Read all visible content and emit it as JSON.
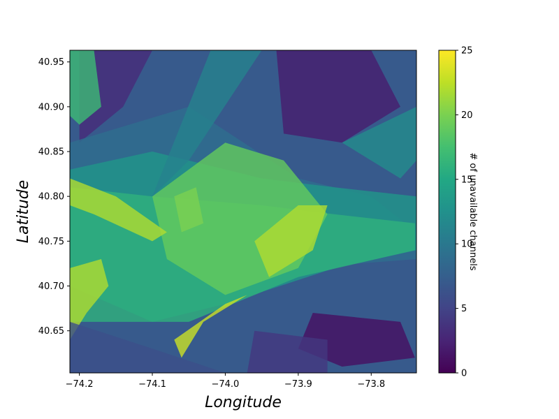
{
  "chart_data": {
    "type": "heatmap",
    "title": "",
    "xlabel": "Longitude",
    "ylabel": "Latitude",
    "xlim": [
      -74.213,
      -73.738
    ],
    "ylim": [
      40.603,
      40.963
    ],
    "x_ticks": [
      -74.2,
      -74.1,
      -74.0,
      -73.9,
      -73.8
    ],
    "x_tick_labels": [
      "−74.2",
      "−74.1",
      "−74.0",
      "−73.9",
      "−73.8"
    ],
    "y_ticks": [
      40.65,
      40.7,
      40.75,
      40.8,
      40.85,
      40.9,
      40.95
    ],
    "y_tick_labels": [
      "40.65",
      "40.70",
      "40.75",
      "40.80",
      "40.85",
      "40.90",
      "40.95"
    ],
    "colorbar": {
      "label": "# of unavailable channels",
      "colormap": "viridis",
      "min": 0,
      "max": 25,
      "ticks": [
        0,
        5,
        10,
        15,
        20,
        25
      ],
      "tick_labels": [
        "0",
        "5",
        "10",
        "15",
        "20",
        "25"
      ]
    },
    "background_value": 7,
    "overlays": [
      {
        "value": 2,
        "points": [
          [
            -73.93,
            40.963
          ],
          [
            -73.8,
            40.963
          ],
          [
            -73.76,
            40.9
          ],
          [
            -73.84,
            40.86
          ],
          [
            -73.92,
            40.87
          ]
        ]
      },
      {
        "value": 3,
        "points": [
          [
            -74.2,
            40.963
          ],
          [
            -74.1,
            40.963
          ],
          [
            -74.14,
            40.9
          ],
          [
            -74.2,
            40.86
          ]
        ]
      },
      {
        "value": 1,
        "points": [
          [
            -73.88,
            40.67
          ],
          [
            -73.76,
            40.66
          ],
          [
            -73.74,
            40.62
          ],
          [
            -73.84,
            40.61
          ],
          [
            -73.9,
            40.63
          ]
        ]
      },
      {
        "value": 4,
        "points": [
          [
            -73.96,
            40.65
          ],
          [
            -73.86,
            40.64
          ],
          [
            -73.86,
            40.603
          ],
          [
            -73.97,
            40.603
          ]
        ]
      },
      {
        "value": 9,
        "points": [
          [
            -74.213,
            40.86
          ],
          [
            -74.05,
            40.9
          ],
          [
            -73.9,
            40.82
          ],
          [
            -73.8,
            40.8
          ],
          [
            -73.738,
            40.76
          ],
          [
            -73.738,
            40.73
          ],
          [
            -73.9,
            40.72
          ],
          [
            -74.05,
            40.68
          ],
          [
            -74.213,
            40.74
          ]
        ]
      },
      {
        "value": 13,
        "points": [
          [
            -74.213,
            40.83
          ],
          [
            -74.1,
            40.85
          ],
          [
            -73.95,
            40.82
          ],
          [
            -73.85,
            40.81
          ],
          [
            -73.738,
            40.8
          ],
          [
            -73.738,
            40.74
          ],
          [
            -73.85,
            40.72
          ],
          [
            -74.0,
            40.68
          ],
          [
            -74.1,
            40.66
          ],
          [
            -74.213,
            40.7
          ]
        ]
      },
      {
        "value": 16,
        "points": [
          [
            -74.213,
            40.81
          ],
          [
            -74.1,
            40.8
          ],
          [
            -73.95,
            40.79
          ],
          [
            -73.85,
            40.78
          ],
          [
            -73.74,
            40.77
          ],
          [
            -73.74,
            40.74
          ],
          [
            -73.9,
            40.71
          ],
          [
            -74.05,
            40.66
          ],
          [
            -74.213,
            40.66
          ]
        ]
      },
      {
        "value": 19,
        "points": [
          [
            -74.1,
            40.8
          ],
          [
            -74.0,
            40.86
          ],
          [
            -73.92,
            40.84
          ],
          [
            -73.86,
            40.78
          ],
          [
            -73.9,
            40.72
          ],
          [
            -74.0,
            40.69
          ],
          [
            -74.08,
            40.73
          ]
        ]
      },
      {
        "value": 22,
        "points": [
          [
            -74.213,
            40.82
          ],
          [
            -74.15,
            40.8
          ],
          [
            -74.08,
            40.76
          ],
          [
            -74.1,
            40.75
          ],
          [
            -74.18,
            40.78
          ],
          [
            -74.213,
            40.79
          ]
        ]
      },
      {
        "value": 22,
        "points": [
          [
            -73.96,
            40.75
          ],
          [
            -73.9,
            40.79
          ],
          [
            -73.86,
            40.79
          ],
          [
            -73.88,
            40.74
          ],
          [
            -73.94,
            40.71
          ]
        ]
      },
      {
        "value": 23,
        "points": [
          [
            -74.07,
            40.64
          ],
          [
            -74.0,
            40.68
          ],
          [
            -73.97,
            40.69
          ],
          [
            -74.03,
            40.66
          ],
          [
            -74.06,
            40.62
          ]
        ]
      },
      {
        "value": 22,
        "points": [
          [
            -74.213,
            40.72
          ],
          [
            -74.17,
            40.73
          ],
          [
            -74.16,
            40.7
          ],
          [
            -74.19,
            40.67
          ],
          [
            -74.213,
            40.64
          ]
        ]
      },
      {
        "value": 20,
        "points": [
          [
            -74.07,
            40.8
          ],
          [
            -74.04,
            40.81
          ],
          [
            -74.03,
            40.77
          ],
          [
            -74.06,
            40.76
          ]
        ]
      },
      {
        "value": 11,
        "points": [
          [
            -74.02,
            40.963
          ],
          [
            -73.95,
            40.963
          ],
          [
            -74.05,
            40.84
          ],
          [
            -74.1,
            40.8
          ]
        ]
      },
      {
        "value": 6,
        "points": [
          [
            -74.213,
            40.66
          ],
          [
            -74.1,
            40.63
          ],
          [
            -74.0,
            40.603
          ],
          [
            -74.213,
            40.603
          ]
        ]
      },
      {
        "value": 12,
        "points": [
          [
            -73.738,
            40.9
          ],
          [
            -73.84,
            40.86
          ],
          [
            -73.76,
            40.82
          ],
          [
            -73.738,
            40.84
          ]
        ]
      },
      {
        "value": 17,
        "points": [
          [
            -74.213,
            40.963
          ],
          [
            -74.18,
            40.963
          ],
          [
            -74.17,
            40.9
          ],
          [
            -74.2,
            40.88
          ],
          [
            -74.213,
            40.89
          ]
        ]
      }
    ]
  }
}
